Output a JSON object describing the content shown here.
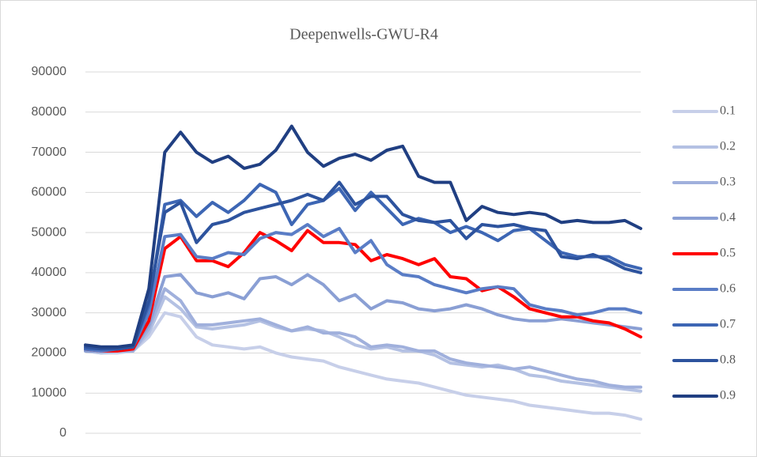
{
  "chart_data": {
    "type": "line",
    "title": "Deepenwells-GWU-R4",
    "ylim": [
      0,
      90000
    ],
    "yticks": [
      0,
      10000,
      20000,
      30000,
      40000,
      50000,
      60000,
      70000,
      80000,
      90000
    ],
    "grid": true,
    "legend": "right",
    "series": [
      {
        "name": "0.1",
        "color": "#c7cfe9",
        "values": [
          20500,
          20000,
          20000,
          20500,
          24000,
          30000,
          29000,
          24000,
          22000,
          21500,
          21000,
          21500,
          20000,
          19000,
          18500,
          18000,
          16500,
          15500,
          14500,
          13500,
          13000,
          12500,
          11500,
          10500,
          9500,
          9000,
          8500,
          8000,
          7000,
          6500,
          6000,
          5500,
          5000,
          5000,
          4500,
          3500
        ]
      },
      {
        "name": "0.2",
        "color": "#b4c1e3",
        "values": [
          20500,
          20000,
          20500,
          20500,
          25000,
          34000,
          31000,
          26500,
          26000,
          26500,
          27000,
          28000,
          26500,
          25500,
          26000,
          25500,
          24000,
          22000,
          21000,
          21500,
          20500,
          20500,
          19500,
          17500,
          17000,
          16500,
          17000,
          16000,
          14500,
          14000,
          13000,
          12500,
          12000,
          11500,
          11000,
          10500
        ]
      },
      {
        "name": "0.3",
        "color": "#a0b0dc",
        "values": [
          20500,
          20500,
          20500,
          20500,
          26000,
          36000,
          33000,
          27000,
          27000,
          27500,
          28000,
          28500,
          27000,
          25500,
          26500,
          25000,
          25000,
          24000,
          21500,
          22000,
          21500,
          20500,
          20500,
          18500,
          17500,
          17000,
          16500,
          16000,
          16500,
          15500,
          14500,
          13500,
          13000,
          12000,
          11500,
          11500
        ]
      },
      {
        "name": "0.4",
        "color": "#8a9fd4",
        "values": [
          20500,
          20500,
          20500,
          21000,
          27000,
          39000,
          39500,
          35000,
          34000,
          35000,
          33500,
          38500,
          39000,
          37000,
          39500,
          37000,
          33000,
          34500,
          31000,
          33000,
          32500,
          31000,
          30500,
          31000,
          32000,
          31000,
          29500,
          28500,
          28000,
          28000,
          28500,
          28000,
          27500,
          27000,
          26500,
          26000
        ]
      },
      {
        "name": "0.5",
        "color": "#ff0000",
        "values": [
          21000,
          20500,
          20500,
          21000,
          28000,
          46000,
          49000,
          43000,
          43000,
          41500,
          45000,
          50000,
          48000,
          45500,
          50500,
          47500,
          47500,
          47000,
          43000,
          44500,
          43500,
          42000,
          43500,
          39000,
          38500,
          35500,
          36500,
          34000,
          31000,
          30000,
          29000,
          29000,
          28000,
          27500,
          26000,
          24000
        ]
      },
      {
        "name": "0.6",
        "color": "#5a7dc6",
        "values": [
          21000,
          20500,
          21000,
          21500,
          30000,
          49000,
          49500,
          44000,
          43500,
          45000,
          44500,
          48500,
          50000,
          49500,
          52000,
          49000,
          51000,
          45000,
          48000,
          42000,
          39500,
          39000,
          37000,
          36000,
          35000,
          36000,
          36500,
          36000,
          32000,
          31000,
          30500,
          29500,
          30000,
          31000,
          31000,
          30000
        ]
      },
      {
        "name": "0.7",
        "color": "#3d66b4",
        "values": [
          21000,
          21000,
          21000,
          21500,
          32000,
          57000,
          58000,
          54000,
          57500,
          55000,
          58000,
          62000,
          60000,
          52000,
          57000,
          58000,
          61000,
          55500,
          60000,
          56000,
          52000,
          53500,
          52500,
          50000,
          51500,
          50000,
          48000,
          50500,
          51000,
          48000,
          45000,
          44000,
          44000,
          44000,
          42000,
          41000
        ]
      },
      {
        "name": "0.8",
        "color": "#2d539e",
        "values": [
          21500,
          21000,
          21000,
          21500,
          33000,
          55000,
          57500,
          47500,
          52000,
          53000,
          55000,
          56000,
          57000,
          58000,
          59500,
          58000,
          62500,
          57000,
          59000,
          59000,
          54500,
          53000,
          52500,
          53000,
          48500,
          52000,
          51500,
          52000,
          51000,
          50500,
          44000,
          43500,
          44500,
          43000,
          41000,
          40000
        ]
      },
      {
        "name": "0.9",
        "color": "#203f82",
        "values": [
          22000,
          21500,
          21500,
          22000,
          36000,
          70000,
          75000,
          70000,
          67500,
          69000,
          66000,
          67000,
          70500,
          76500,
          70000,
          66500,
          68500,
          69500,
          68000,
          70500,
          71500,
          64000,
          62500,
          62500,
          53000,
          56500,
          55000,
          54500,
          55000,
          54500,
          52500,
          53000,
          52500,
          52500,
          53000,
          51000
        ]
      }
    ]
  }
}
